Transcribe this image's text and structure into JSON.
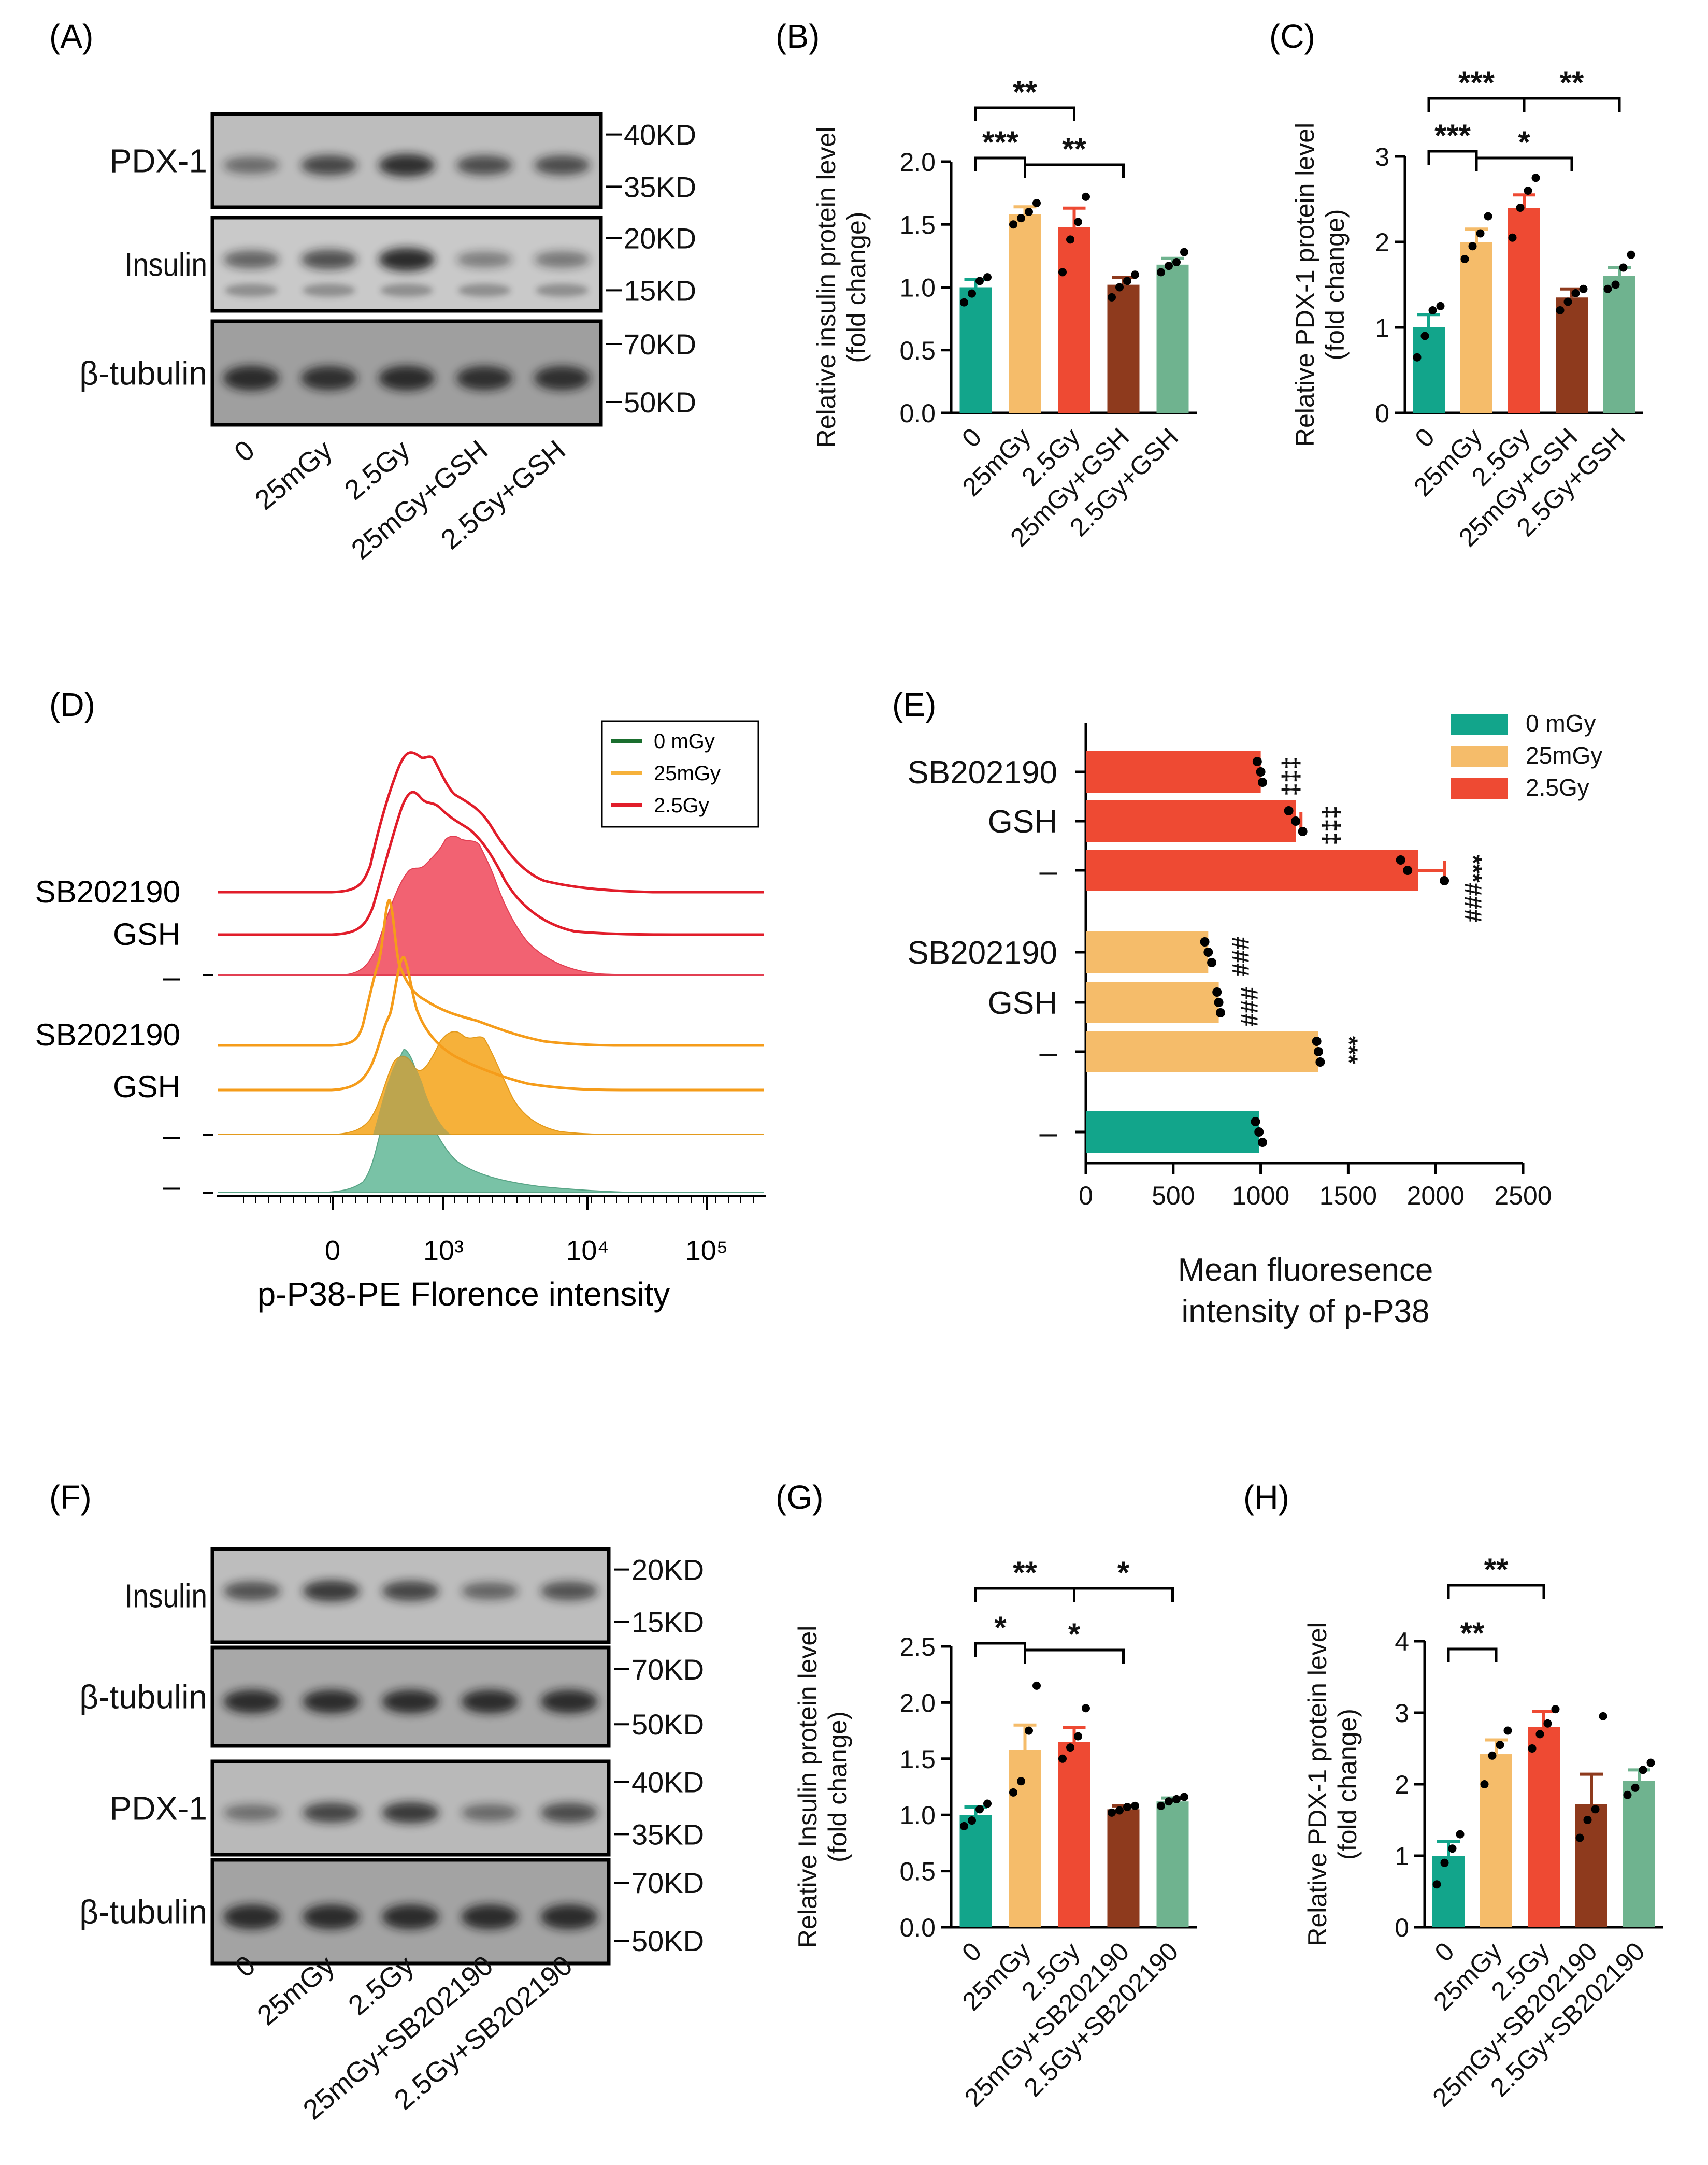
{
  "figure": {
    "panel_labels": [
      "(A)",
      "(B)",
      "(C)",
      "(D)",
      "(E)",
      "(F)",
      "(G)",
      "(H)"
    ]
  },
  "colors": {
    "c0": "#12a58b",
    "c25": "#f5bc6a",
    "c25gsh": "#8e3a1d",
    "c25gsh_alt": "#6fb38f",
    "c25red": "#ee4a33",
    "hist_green": "#79c2a6",
    "hist_orange": "#f6b13a",
    "hist_red": "#f26272",
    "line_orange": "#f59c1a",
    "line_red": "#e11d2a",
    "legend_green": "#1a6e2e"
  },
  "blotA": {
    "rows": [
      {
        "name": "PDX-1",
        "markers": [
          "40KD",
          "35KD"
        ]
      },
      {
        "name": "Insulin",
        "markers": [
          "20KD",
          "15KD"
        ]
      },
      {
        "name": "β-tubulin",
        "markers": [
          "70KD",
          "50KD"
        ]
      }
    ],
    "lanes": [
      "0",
      "25mGy",
      "2.5Gy",
      "25mGy+GSH",
      "2.5Gy+GSH"
    ]
  },
  "blotF": {
    "rows": [
      {
        "name": "Insulin",
        "markers": [
          "20KD",
          "15KD"
        ]
      },
      {
        "name": "β-tubulin",
        "markers": [
          "70KD",
          "50KD"
        ]
      },
      {
        "name": "PDX-1",
        "markers": [
          "40KD",
          "35KD"
        ]
      },
      {
        "name": "β-tubulin",
        "markers": [
          "70KD",
          "50KD"
        ]
      }
    ],
    "lanes": [
      "0",
      "25mGy",
      "2.5Gy",
      "25mGy+SB202190",
      "2.5Gy+SB202190"
    ]
  },
  "chart_data": [
    {
      "id": "B",
      "type": "bar",
      "ylabel": "Relative insulin protein level",
      "ylabel2": "(fold change)",
      "categories": [
        "0",
        "25mGy",
        "2.5Gy",
        "25mGy+GSH",
        "2.5Gy+GSH"
      ],
      "values": [
        1.0,
        1.58,
        1.48,
        1.02,
        1.18
      ],
      "errors": [
        0.06,
        0.06,
        0.15,
        0.06,
        0.05
      ],
      "points": [
        [
          0.88,
          0.95,
          1.05,
          1.08
        ],
        [
          1.5,
          1.55,
          1.6,
          1.67
        ],
        [
          1.12,
          1.38,
          1.52,
          1.72
        ],
        [
          0.92,
          1.0,
          1.05,
          1.1
        ],
        [
          1.12,
          1.17,
          1.2,
          1.28
        ]
      ],
      "ylim": [
        0,
        2.0
      ],
      "yticks": [
        0.0,
        0.5,
        1.0,
        1.5,
        2.0
      ],
      "ytick_labels": [
        "0.0",
        "0.5",
        "1.0",
        "1.5",
        "2.0"
      ],
      "significance": [
        {
          "from": 0,
          "to": 2,
          "label": "**"
        },
        {
          "from": 0,
          "to": 1,
          "label": "***"
        },
        {
          "from": 1,
          "to": 3,
          "label": "**"
        }
      ]
    },
    {
      "id": "C",
      "type": "bar",
      "ylabel": "Relative PDX-1 protein level",
      "ylabel2": "(fold change)",
      "categories": [
        "0",
        "25mGy",
        "2.5Gy",
        "25mGy+GSH",
        "2.5Gy+GSH"
      ],
      "values": [
        1.0,
        2.0,
        2.4,
        1.35,
        1.6
      ],
      "errors": [
        0.15,
        0.15,
        0.15,
        0.1,
        0.1
      ],
      "points": [
        [
          0.65,
          0.9,
          1.2,
          1.25
        ],
        [
          1.8,
          1.95,
          2.1,
          2.3
        ],
        [
          2.05,
          2.4,
          2.6,
          2.75
        ],
        [
          1.2,
          1.3,
          1.4,
          1.45
        ],
        [
          1.45,
          1.5,
          1.7,
          1.85
        ]
      ],
      "ylim": [
        0,
        3
      ],
      "yticks": [
        0,
        1,
        2,
        3
      ],
      "ytick_labels": [
        "0",
        "1",
        "2",
        "3"
      ],
      "significance": [
        {
          "from": 0,
          "to": 2,
          "label": "***"
        },
        {
          "from": 2,
          "to": 4,
          "label": "**"
        },
        {
          "from": 0,
          "to": 1,
          "label": "***"
        },
        {
          "from": 1,
          "to": 3,
          "label": "*"
        }
      ]
    },
    {
      "id": "G",
      "type": "bar",
      "ylabel": "Relative Insulin protein level",
      "ylabel2": "(fold change)",
      "categories": [
        "0",
        "25mGy",
        "2.5Gy",
        "25mGy+SB202190",
        "2.5Gy+SB202190"
      ],
      "values": [
        1.0,
        1.58,
        1.65,
        1.05,
        1.12
      ],
      "errors": [
        0.07,
        0.22,
        0.13,
        0.03,
        0.03
      ],
      "points": [
        [
          0.9,
          0.95,
          1.05,
          1.1
        ],
        [
          1.2,
          1.3,
          1.75,
          2.15
        ],
        [
          1.5,
          1.6,
          1.7,
          1.95
        ],
        [
          1.02,
          1.04,
          1.07,
          1.08
        ],
        [
          1.08,
          1.12,
          1.14,
          1.16
        ]
      ],
      "ylim": [
        0,
        2.5
      ],
      "yticks": [
        0.0,
        0.5,
        1.0,
        1.5,
        2.0,
        2.5
      ],
      "ytick_labels": [
        "0.0",
        "0.5",
        "1.0",
        "1.5",
        "2.0",
        "2.5"
      ],
      "significance": [
        {
          "from": 0,
          "to": 2,
          "label": "**"
        },
        {
          "from": 2,
          "to": 4,
          "label": "*"
        },
        {
          "from": 0,
          "to": 1,
          "label": "*"
        },
        {
          "from": 1,
          "to": 3,
          "label": "*"
        }
      ]
    },
    {
      "id": "H",
      "type": "bar",
      "ylabel": "Relative PDX-1 protein level",
      "ylabel2": "(fold change)",
      "categories": [
        "0",
        "25mGy",
        "2.5Gy",
        "25mGy+SB202190",
        "2.5Gy+SB202190"
      ],
      "values": [
        1.0,
        2.42,
        2.8,
        1.72,
        2.05
      ],
      "errors": [
        0.2,
        0.2,
        0.22,
        0.42,
        0.15
      ],
      "points": [
        [
          0.6,
          0.9,
          1.1,
          1.3
        ],
        [
          2.0,
          2.4,
          2.55,
          2.75
        ],
        [
          2.5,
          2.7,
          2.85,
          3.05
        ],
        [
          1.25,
          1.5,
          1.65,
          2.95
        ],
        [
          1.85,
          1.95,
          2.2,
          2.3
        ]
      ],
      "ylim": [
        0,
        4
      ],
      "yticks": [
        0,
        1,
        2,
        3,
        4
      ],
      "ytick_labels": [
        "0",
        "1",
        "2",
        "3",
        "4"
      ],
      "significance": [
        {
          "from": 0,
          "to": 2,
          "label": "**"
        },
        {
          "from": 0,
          "to": 1,
          "label": "**"
        }
      ]
    },
    {
      "id": "E",
      "type": "bar",
      "orientation": "horizontal",
      "xlabel": "Mean fluoresence",
      "xlabel2": "intensity of p-P38",
      "xlim": [
        0,
        2500
      ],
      "xticks": [
        0,
        500,
        1000,
        1500,
        2000,
        2500
      ],
      "xtick_labels": [
        "0",
        "500",
        "1000",
        "1500",
        "2000",
        "2500"
      ],
      "legend": [
        "0 mGy",
        "25mGy",
        "2.5Gy"
      ],
      "bars": [
        {
          "label": "SB202190",
          "group": "2.5Gy",
          "value": 1000,
          "error": 0,
          "points": [
            980,
            1000,
            1010
          ],
          "annot": "‡‡‡"
        },
        {
          "label": "GSH",
          "group": "2.5Gy",
          "value": 1200,
          "error": 30,
          "points": [
            1160,
            1200,
            1240
          ],
          "annot": "‡‡‡"
        },
        {
          "label": "–",
          "group": "2.5Gy",
          "value": 1900,
          "error": 150,
          "points": [
            1800,
            1840,
            2050
          ],
          "annot": "***###"
        },
        {
          "label": "SB202190",
          "group": "25mGy",
          "value": 700,
          "error": 0,
          "points": [
            680,
            700,
            720
          ],
          "annot": "###"
        },
        {
          "label": "GSH",
          "group": "25mGy",
          "value": 760,
          "error": 0,
          "points": [
            750,
            760,
            770
          ],
          "annot": "###"
        },
        {
          "label": "–",
          "group": "25mGy",
          "value": 1330,
          "error": 0,
          "points": [
            1320,
            1330,
            1340
          ],
          "annot": "***"
        },
        {
          "label": "–",
          "group": "0 mGy",
          "value": 990,
          "error": 0,
          "points": [
            970,
            990,
            1010
          ],
          "annot": ""
        }
      ]
    },
    {
      "id": "D",
      "type": "area",
      "title": "",
      "xlabel": "p-P38-PE Florence intensity",
      "xtick_labels": [
        "0",
        "10³",
        "10⁴",
        "10⁵"
      ],
      "legend": [
        "0 mGy",
        "25mGy",
        "2.5Gy"
      ],
      "row_labels": [
        "SB202190",
        "GSH",
        "–",
        "SB202190",
        "GSH",
        "–",
        "–"
      ]
    }
  ]
}
